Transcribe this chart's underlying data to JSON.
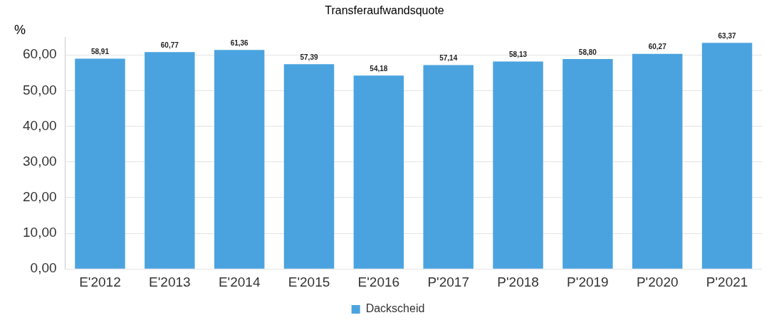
{
  "chart_data": {
    "type": "bar",
    "title": "Transferaufwandsquote",
    "ylabel": "%",
    "categories": [
      "E'2012",
      "E'2013",
      "E'2014",
      "E'2015",
      "E'2016",
      "P'2017",
      "P'2018",
      "P'2019",
      "P'2020",
      "P'2021"
    ],
    "series": [
      {
        "name": "Dackscheid",
        "color": "#4aa3df",
        "values": [
          58.91,
          60.77,
          61.36,
          57.39,
          54.18,
          57.14,
          58.13,
          58.8,
          60.27,
          63.37
        ],
        "value_labels": [
          "58,91",
          "60,77",
          "61,36",
          "57,39",
          "54,18",
          "57,14",
          "58,13",
          "58,80",
          "60,27",
          "63,37"
        ]
      }
    ],
    "ylim": [
      0,
      65
    ],
    "yticks": [
      {
        "value": 0,
        "label": "0,00"
      },
      {
        "value": 10,
        "label": "10,00"
      },
      {
        "value": 20,
        "label": "20,00"
      },
      {
        "value": 30,
        "label": "30,00"
      },
      {
        "value": 40,
        "label": "40,00"
      },
      {
        "value": 50,
        "label": "50,00"
      },
      {
        "value": 60,
        "label": "60,00"
      }
    ],
    "grid": "y",
    "legend": "bottom"
  }
}
